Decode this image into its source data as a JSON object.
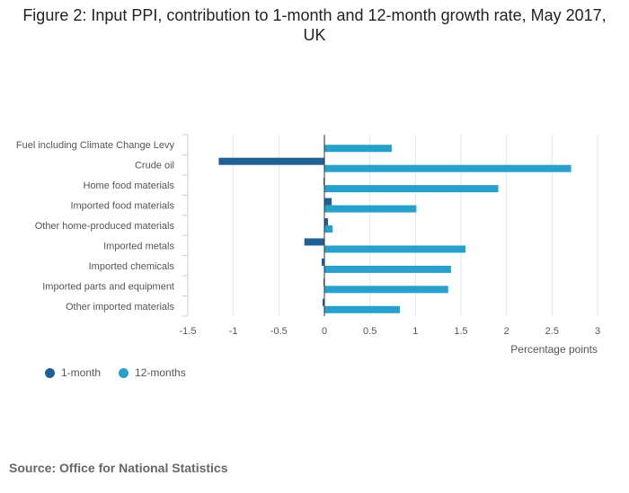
{
  "title": "Figure 2: Input PPI, contribution to 1-month and 12-month growth rate, May 2017, UK",
  "colors": {
    "month1": "#206095",
    "month12": "#27a0cc",
    "grid": "#e6e6e6",
    "axis": "#cccccc",
    "text": "#555555"
  },
  "chart_data": {
    "type": "bar",
    "orientation": "horizontal",
    "categories": [
      "Fuel including Climate Change Levy",
      "Crude oil",
      "Home food materials",
      "Imported food materials",
      "Other home-produced materials",
      "Imported metals",
      "Imported chemicals",
      "Imported parts and equipment",
      "Other imported materials"
    ],
    "series": [
      {
        "name": "1-month",
        "values": [
          0.0,
          -1.16,
          -0.01,
          0.08,
          0.04,
          -0.22,
          -0.03,
          -0.01,
          -0.02
        ]
      },
      {
        "name": "12-months",
        "values": [
          0.74,
          2.71,
          1.91,
          1.01,
          0.09,
          1.55,
          1.39,
          1.36,
          0.83
        ]
      }
    ],
    "xlabel": "Percentage points",
    "xlim": [
      -1.5,
      3
    ],
    "xticks": [
      -1.5,
      -1,
      -0.5,
      0,
      0.5,
      1,
      1.5,
      2,
      2.5,
      3
    ],
    "xtick_labels": [
      "-1.5",
      "-1",
      "-0.5",
      "0",
      "0.5",
      "1",
      "1.5",
      "2",
      "2.5",
      "3"
    ],
    "grid": true,
    "legend_position": "bottom-left"
  },
  "legend": {
    "month1": "1-month",
    "month12": "12-months"
  },
  "source": "Source: Office for National Statistics"
}
